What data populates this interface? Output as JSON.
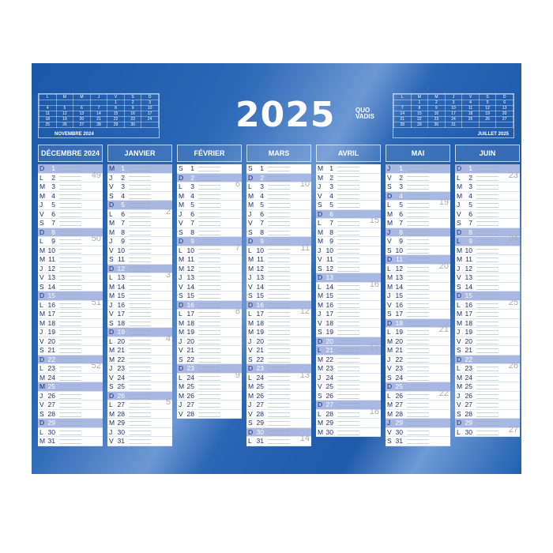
{
  "title": "2025",
  "brand": {
    "line1": "QUO",
    "line2": "VADIS"
  },
  "mini_left": {
    "title": "NOVEMBRE 2024",
    "headers": [
      "L",
      "M",
      "M",
      "J",
      "V",
      "S",
      "D"
    ],
    "weeks": [
      [
        "",
        "",
        "",
        "",
        "1",
        "2",
        "3"
      ],
      [
        "4",
        "5",
        "6",
        "7",
        "8",
        "9",
        "10"
      ],
      [
        "11",
        "12",
        "13",
        "14",
        "15",
        "16",
        "17"
      ],
      [
        "18",
        "19",
        "20",
        "21",
        "22",
        "23",
        "24"
      ],
      [
        "25",
        "26",
        "27",
        "28",
        "29",
        "30",
        ""
      ]
    ]
  },
  "mini_right": {
    "title": "JUILLET 2025",
    "headers": [
      "L",
      "M",
      "M",
      "J",
      "V",
      "S",
      "D"
    ],
    "weeks": [
      [
        "",
        "1",
        "2",
        "3",
        "4",
        "5",
        "6"
      ],
      [
        "7",
        "8",
        "9",
        "10",
        "11",
        "12",
        "13"
      ],
      [
        "14",
        "15",
        "16",
        "17",
        "18",
        "19",
        "20"
      ],
      [
        "21",
        "22",
        "23",
        "24",
        "25",
        "26",
        "27"
      ],
      [
        "28",
        "29",
        "30",
        "31",
        "",
        "",
        ""
      ]
    ]
  },
  "months": [
    {
      "name": "DÉCEMBRE 2024",
      "days": "DLMMJVSDLMMJVSDLMMJVSDLMMJVSDLM",
      "highlight": [
        1,
        8,
        15,
        22,
        25,
        29
      ],
      "weeks": {
        "2": "49",
        "9": "50",
        "16": "51",
        "23": "52"
      }
    },
    {
      "name": "JANVIER",
      "days": "MJVSDLMMJVSDLMMJVSDLMMJVSDLMMJV",
      "highlight": [
        1,
        5,
        12,
        19,
        26
      ],
      "weeks": {
        "6": "2",
        "13": "3",
        "20": "4",
        "27": "5"
      }
    },
    {
      "name": "FÉVRIER",
      "days": "SDLMMJVSDLMMJVSDLMMJVSDLMMJV",
      "highlight": [
        2,
        9,
        16,
        23
      ],
      "weeks": {
        "3": "6",
        "10": "7",
        "17": "8",
        "24": "9"
      }
    },
    {
      "name": "MARS",
      "days": "SDLMMJVSDLMMJVSDLMMJVSDLMMJVSDL",
      "highlight": [
        2,
        9,
        16,
        23,
        30
      ],
      "weeks": {
        "3": "10",
        "10": "11",
        "17": "12",
        "24": "13",
        "31": "14"
      }
    },
    {
      "name": "AVRIL",
      "days": "MMJVSDLMMJVSDLMMJVSDLMMJVSDLMM",
      "highlight": [
        6,
        13,
        20,
        21,
        27
      ],
      "weeks": {
        "7": "15",
        "14": "16",
        "21": "17",
        "28": "18"
      }
    },
    {
      "name": "MAI",
      "days": "JVSDLMMJVSDLMMJVSDLMMJVSDLMMJVS",
      "highlight": [
        1,
        4,
        8,
        11,
        18,
        25,
        29
      ],
      "weeks": {
        "5": "19",
        "12": "20",
        "19": "21",
        "26": "22"
      }
    },
    {
      "name": "JUIN",
      "days": "DLMMJVSDLMMJVSDLMMJVSDLMMJVSDL",
      "highlight": [
        1,
        8,
        9,
        15,
        22,
        29
      ],
      "weeks": {
        "2": "23",
        "9": "24",
        "16": "25",
        "23": "26",
        "30": "27"
      }
    }
  ],
  "colors": {
    "background": "#1f5aab",
    "highlight_row": "#a9b8e2",
    "text": "#1a2f6b"
  }
}
